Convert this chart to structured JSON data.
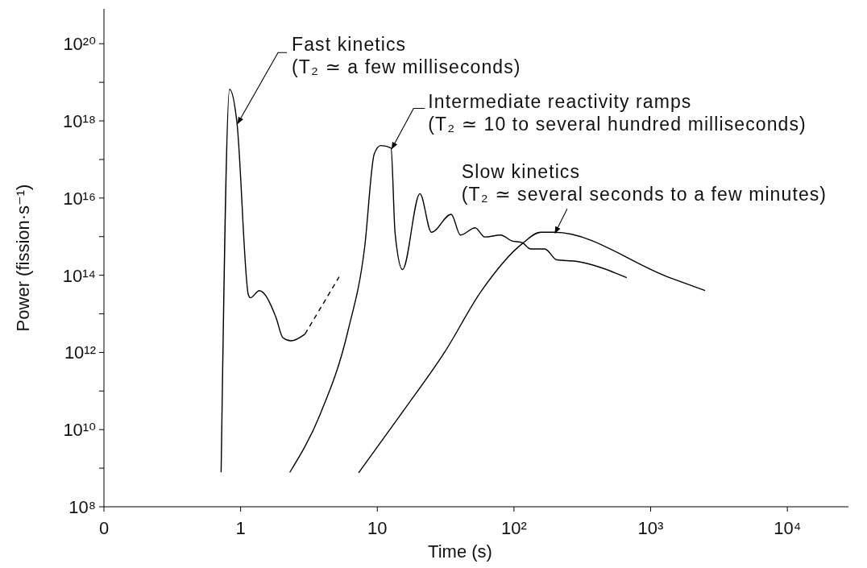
{
  "chart_data": {
    "type": "line",
    "xlabel": "Time (s)",
    "ylabel": "Power (fission·s⁻¹)",
    "log": "xy",
    "grid": false,
    "marker": "none",
    "xlim": [
      0.1,
      28000
    ],
    "ylim": [
      100000000.0,
      8e+20
    ],
    "xticks": [
      {
        "value": 0.1,
        "label": "0"
      },
      1,
      10,
      {
        "value": 100,
        "label": "10²"
      },
      {
        "value": 1000,
        "label": "10³"
      },
      {
        "value": 10000,
        "label": "10⁴"
      }
    ],
    "yticks": [
      {
        "value": 100000000.0,
        "label": "10⁸"
      },
      {
        "value": 1000000000.0,
        "label": null
      },
      {
        "value": 10000000000.0,
        "label": "10¹⁰"
      },
      {
        "value": 100000000000.0,
        "label": null
      },
      {
        "value": 1000000000000.0,
        "label": "10¹²"
      },
      {
        "value": 10000000000000.0,
        "label": null
      },
      {
        "value": 100000000000000.0,
        "label": "10¹⁴"
      },
      {
        "value": 1000000000000000.0,
        "label": null
      },
      {
        "value": 1e+16,
        "label": "10¹⁶"
      },
      {
        "value": 1e+17,
        "label": null
      },
      {
        "value": 1e+18,
        "label": "10¹⁸"
      },
      {
        "value": 1e+19,
        "label": null
      },
      {
        "value": 1e+20,
        "label": "10²⁰"
      }
    ],
    "series": [
      {
        "color": "#000000",
        "line_style": "solid",
        "x": [
          0.72,
          0.83,
          0.94,
          1.14,
          1.18,
          1.37,
          1.81,
          2.04,
          2.34,
          2.96
        ],
        "values": [
          780000000.0,
          6.6e+18,
          9e+17,
          31000000000000.0,
          26000000000000.0,
          40000000000000.0,
          8300000000000.0,
          2400000000000.0,
          2000000000000.0,
          3000000000000.0
        ]
      },
      {
        "color": "#000000",
        "line_style": "dashed",
        "x": [
          2.96,
          5.26
        ],
        "values": [
          3000000000000.0,
          91000000000000.0
        ]
      },
      {
        "color": "#000000",
        "line_style": "solid",
        "x": [
          2.29,
          3.82,
          6.1,
          8.07,
          9.5,
          10.6,
          12.6,
          13.5,
          15.3,
          20.5,
          24.9,
          34.7,
          40.6,
          52,
          61,
          80,
          96,
          115,
          132,
          168,
          206,
          283,
          668
        ],
        "values": [
          780000000.0,
          25000000000.0,
          3600000000000.0,
          510000000000000.0,
          1.4e+17,
          2.3e+17,
          2e+17,
          1200000000000000.0,
          140000000000000.0,
          1.3e+16,
          1300000000000000.0,
          3800000000000000.0,
          1100000000000000.0,
          1700000000000000.0,
          980000000000000.0,
          1100000000000000.0,
          780000000000000.0,
          700000000000000.0,
          480000000000000.0,
          480000000000000.0,
          250000000000000.0,
          230000000000000.0,
          87000000000000.0
        ]
      },
      {
        "color": "#000000",
        "line_style": "solid",
        "x": [
          7.3,
          15,
          31,
          58,
          115,
          157,
          197,
          1340,
          2500
        ],
        "values": [
          760000000.0,
          26000000000.0,
          1000000000000.0,
          40000000000000.0,
          660000000000000.0,
          1300000000000000.0,
          1300000000000000.0,
          90000000000000.0,
          40000000000000.0
        ]
      }
    ],
    "annotations": [
      {
        "text": "Fast kinetics\n(T₂ ≃ a few milliseconds)",
        "x": 0.94,
        "y": 9e+17
      },
      {
        "text": "Intermediate reactivity ramps\n(T₂ ≃ 10 to several hundred milliseconds)",
        "x": 12.6,
        "y": 2e+17
      },
      {
        "text": "Slow kinetics\n(T₂ ≃ several seconds to a few minutes)",
        "x": 197,
        "y": 1300000000000000.0
      }
    ]
  }
}
